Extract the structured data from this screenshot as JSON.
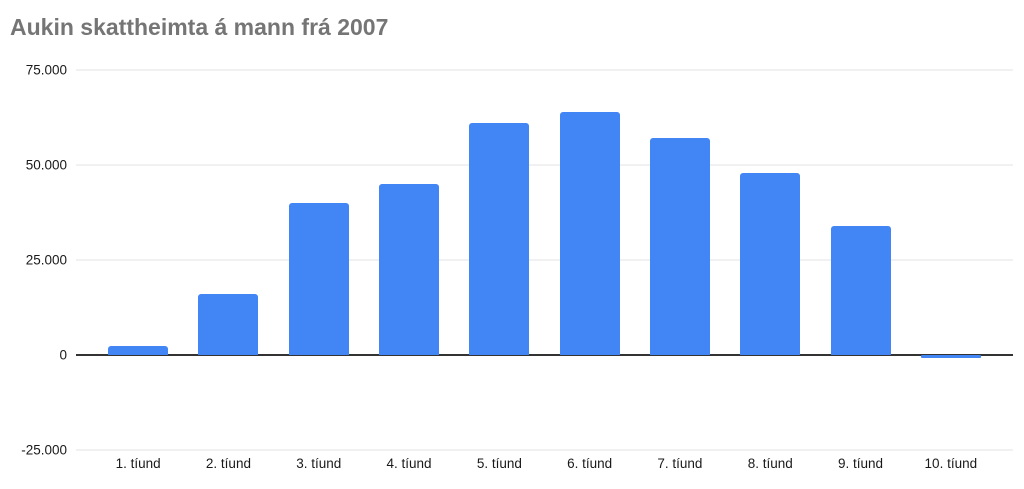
{
  "chart": {
    "colors": {
      "bar": "#4285f4",
      "grid": "#e3e3e3",
      "zero_axis": "#333333",
      "title_text": "#757575",
      "tick_text": "#1a1a1a",
      "background": "#ffffff"
    }
  },
  "chart_data": {
    "type": "bar",
    "title": "Aukin skattheimta á mann frá 2007",
    "categories": [
      "1. tíund",
      "2. tíund",
      "3. tíund",
      "4. tíund",
      "5. tíund",
      "6. tíund",
      "7. tíund",
      "8. tíund",
      "9. tíund",
      "10. tíund"
    ],
    "values": [
      2500,
      16000,
      40000,
      45000,
      61000,
      64000,
      57000,
      48000,
      34000,
      0
    ],
    "xlabel": "",
    "ylabel": "",
    "ylim": [
      -25000,
      75000
    ],
    "yticks": [
      75000,
      50000,
      25000,
      0,
      -25000
    ],
    "ytick_labels": [
      "75.000",
      "50.000",
      "25.000",
      "0",
      "-25.000"
    ],
    "grid": true,
    "legend": false
  }
}
